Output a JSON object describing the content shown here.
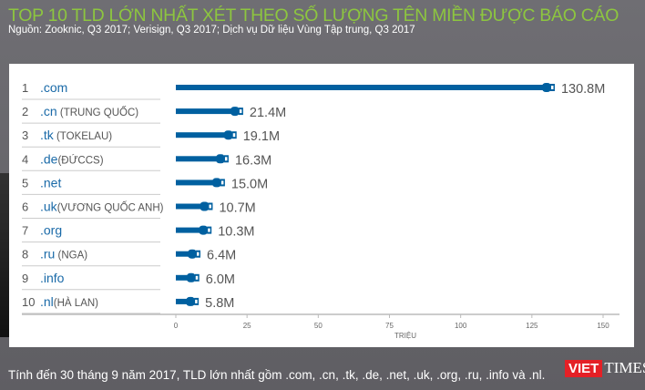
{
  "header": {
    "title": "TOP 10 TLD LỚN NHẤT XÉT THEO SỐ LƯỢNG TÊN MIỀN ĐƯỢC BÁO CÁO",
    "subtitle": "Nguồn: Zooknic, Q3 2017; Verisign, Q3 2017; Dịch vụ Dữ liệu Vùng Tập trung, Q3 2017"
  },
  "chart_data": {
    "type": "bar",
    "orientation": "horizontal",
    "categories": [
      {
        "rank": "1",
        "tld": ".com",
        "note": ""
      },
      {
        "rank": "2",
        "tld": ".cn",
        "note": "(TRUNG QUỐC)"
      },
      {
        "rank": "3",
        "tld": ".tk",
        "note": "(TOKELAU)"
      },
      {
        "rank": "4",
        "tld": ".de",
        "note": "(ĐỨCCS)"
      },
      {
        "rank": "5",
        "tld": ".net",
        "note": ""
      },
      {
        "rank": "6",
        "tld": ".uk",
        "note": "(VƯƠNG QUỐC ANH)"
      },
      {
        "rank": "7",
        "tld": ".org",
        "note": ""
      },
      {
        "rank": "8",
        "tld": ".ru",
        "note": "(NGA)"
      },
      {
        "rank": "9",
        "tld": ".info",
        "note": ""
      },
      {
        "rank": "10",
        "tld": ".nl",
        "note": "(HÀ LAN)"
      }
    ],
    "values": [
      130.8,
      21.4,
      19.1,
      16.3,
      15.0,
      10.7,
      10.3,
      6.4,
      6.0,
      5.8
    ],
    "data_labels": [
      "130.8M",
      "21.4M",
      "19.1M",
      "16.3M",
      "15.0M",
      "10.7M",
      "10.3M",
      "6.4M",
      "6.0M",
      "5.8M"
    ],
    "xticks": [
      "0",
      "25",
      "50",
      "75",
      "100",
      "125",
      "150"
    ],
    "xlim": [
      0,
      150
    ],
    "xlabel": "TRIỆU",
    "bar_color": "#0060a0"
  },
  "footer": {
    "text": "Tính đến 30 tháng 9 năm 2017, TLD lớn nhất gồm .com, .cn, .tk, .de, .net, .uk, .org, .ru, .info và .nl.",
    "logo_red": "VIET",
    "logo_rest": "TIMES"
  }
}
